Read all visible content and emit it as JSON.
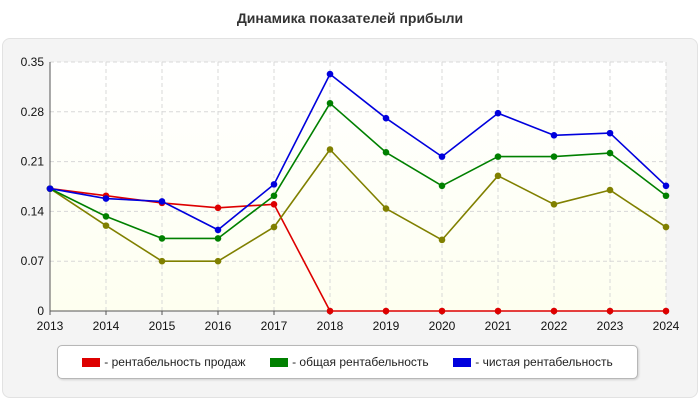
{
  "chart_data": {
    "type": "line",
    "title": "Динамика показателей прибыли",
    "x": [
      2013,
      2014,
      2015,
      2016,
      2017,
      2018,
      2019,
      2020,
      2021,
      2022,
      2023,
      2024
    ],
    "xlabel": "",
    "ylabel": "",
    "ylim": [
      0,
      0.35
    ],
    "yticks": [
      "0",
      "0.07",
      "0.14",
      "0.21",
      "0.28",
      "0.35"
    ],
    "grid": true,
    "legend_position": "bottom",
    "series": [
      {
        "name": "- рентабельность продаж",
        "color": "#dd0000",
        "in_legend": true,
        "values": [
          0.172,
          0.162,
          0.152,
          0.145,
          0.15,
          0.0,
          0.0,
          0.0,
          0.0,
          0.0,
          0.0,
          0.0
        ]
      },
      {
        "name": "",
        "color": "#808000",
        "in_legend": false,
        "values": [
          0.172,
          0.12,
          0.07,
          0.07,
          0.118,
          0.227,
          0.144,
          0.1,
          0.19,
          0.15,
          0.17,
          0.118
        ]
      },
      {
        "name": "- общая рентабельность",
        "color": "#008000",
        "in_legend": true,
        "values": [
          0.172,
          0.133,
          0.102,
          0.102,
          0.162,
          0.292,
          0.223,
          0.176,
          0.217,
          0.217,
          0.222,
          0.162
        ]
      },
      {
        "name": "- чистая рентабельность",
        "color": "#0000dd",
        "in_legend": true,
        "values": [
          0.172,
          0.158,
          0.154,
          0.114,
          0.178,
          0.333,
          0.271,
          0.217,
          0.278,
          0.247,
          0.25,
          0.176
        ]
      }
    ]
  }
}
